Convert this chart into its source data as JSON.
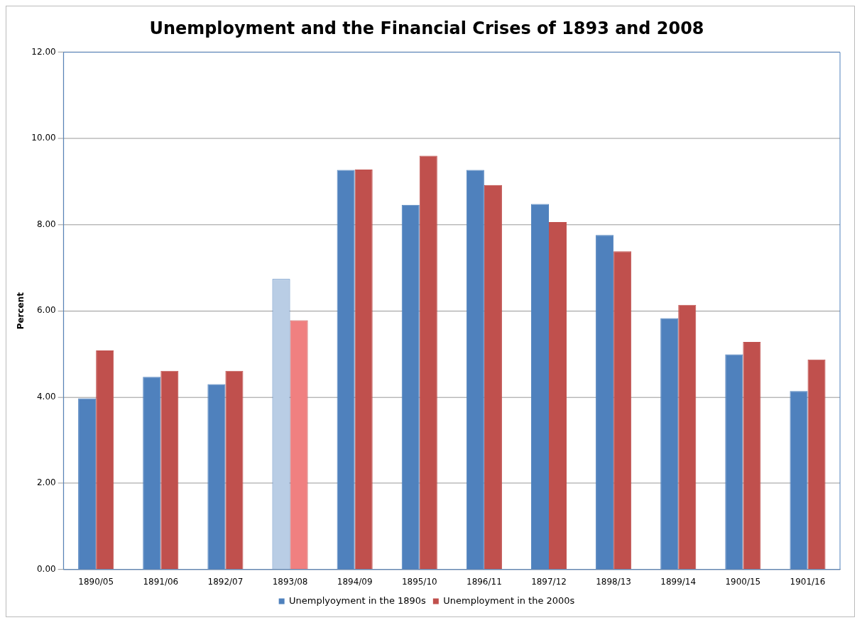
{
  "chart_data": {
    "type": "bar",
    "title": "Unemployment and the Financial Crises of 1893 and 2008",
    "ylabel": "Percent",
    "categories": [
      "1890/05",
      "1891/06",
      "1892/07",
      "1893/08",
      "1894/09",
      "1895/10",
      "1896/11",
      "1897/12",
      "1898/13",
      "1899/14",
      "1900/15",
      "1901/16"
    ],
    "series": [
      {
        "name": "Unemplyoyment in the 1890s",
        "color": "#4f81bd",
        "colors": [
          "#4f81bd",
          "#4f81bd",
          "#4f81bd",
          "#b9cde5",
          "#4f81bd",
          "#4f81bd",
          "#4f81bd",
          "#4f81bd",
          "#4f81bd",
          "#4f81bd",
          "#4f81bd",
          "#4f81bd"
        ],
        "values": [
          3.97,
          4.47,
          4.3,
          6.74,
          9.27,
          8.46,
          9.27,
          8.48,
          7.76,
          5.83,
          4.99,
          4.14
        ]
      },
      {
        "name": "Unemployment in the 2000s",
        "color": "#c0504d",
        "colors": [
          "#c0504d",
          "#c0504d",
          "#c0504d",
          "#f08080",
          "#c0504d",
          "#c0504d",
          "#c0504d",
          "#c0504d",
          "#c0504d",
          "#c0504d",
          "#c0504d",
          "#c0504d"
        ],
        "values": [
          5.08,
          4.61,
          4.61,
          5.78,
          9.28,
          9.6,
          8.92,
          8.06,
          7.38,
          6.14,
          5.28,
          4.87
        ]
      }
    ],
    "ylim": [
      0,
      12
    ],
    "yticks": [
      {
        "value": 0,
        "label": "0.00"
      },
      {
        "value": 2,
        "label": "2.00"
      },
      {
        "value": 4,
        "label": "4.00"
      },
      {
        "value": 6,
        "label": "6.00"
      },
      {
        "value": 8,
        "label": "8.00"
      },
      {
        "value": 10,
        "label": "10.00"
      },
      {
        "value": 12,
        "label": "12.00"
      }
    ],
    "grid": "y",
    "legend": "bottom"
  }
}
